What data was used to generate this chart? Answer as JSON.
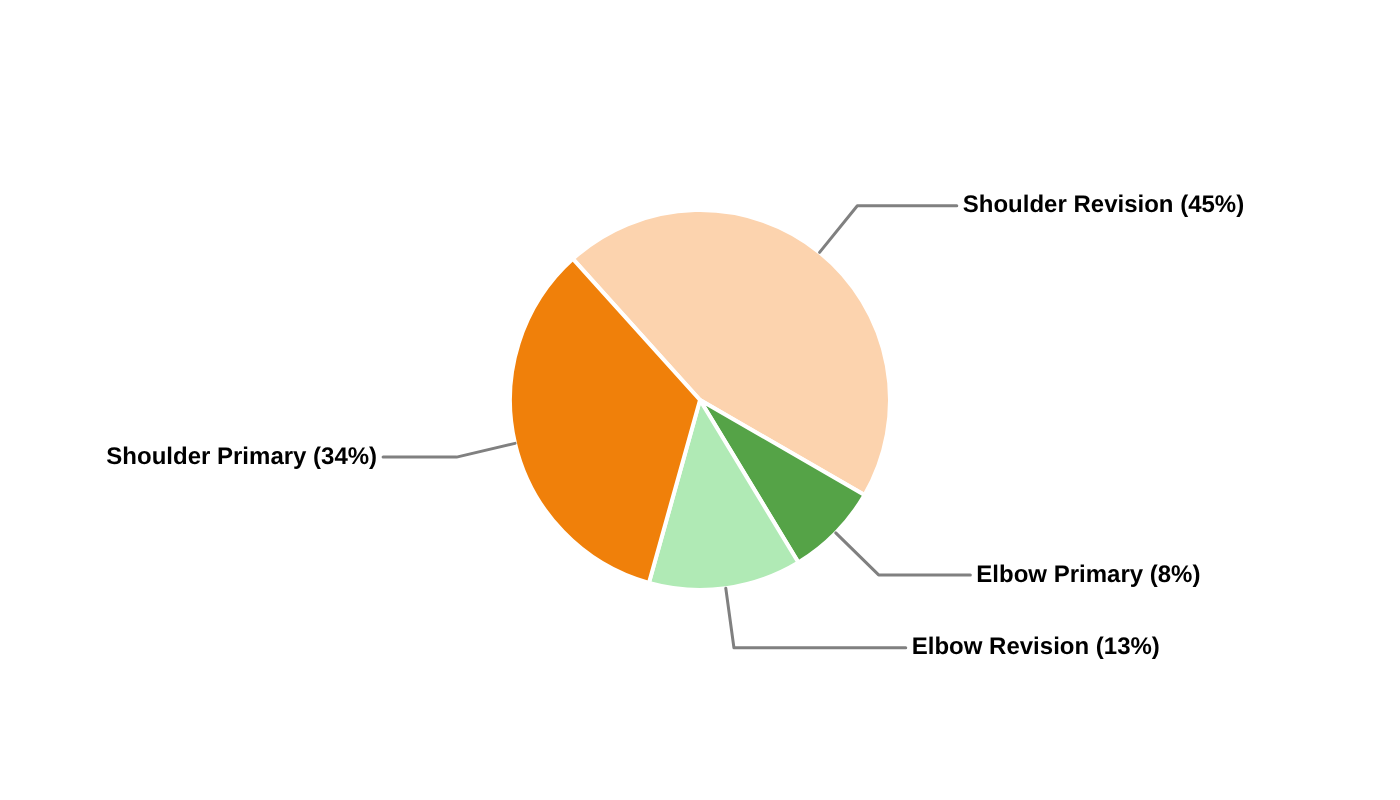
{
  "chart_data": {
    "type": "pie",
    "categories": [
      "Shoulder Revision",
      "Elbow Primary",
      "Elbow Revision",
      "Shoulder Primary"
    ],
    "values": [
      45,
      8,
      13,
      34
    ],
    "value_labels": [
      "(45%)",
      "(8%)",
      "(13%)",
      "(34%)"
    ],
    "colors": [
      "#fcd3ae",
      "#55a347",
      "#b0eab5",
      "#f0800a"
    ],
    "legend": false
  }
}
